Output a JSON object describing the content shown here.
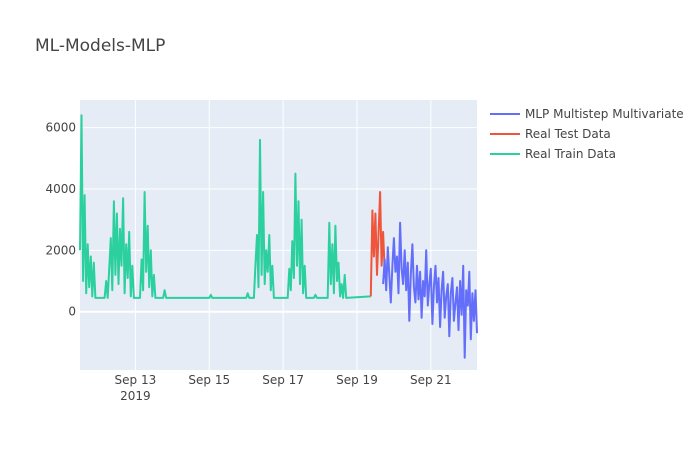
{
  "chart_data": {
    "type": "line",
    "title": "ML-Models-MLP",
    "xlabel": "",
    "ylabel": "",
    "x_range": [
      "2019-09-11 12:00",
      "2019-09-22 06:00"
    ],
    "ylim": [
      -1900,
      6900
    ],
    "x_ticks": [
      {
        "value": "2019-09-13",
        "label": "Sep 13",
        "sublabel": "2019"
      },
      {
        "value": "2019-09-15",
        "label": "Sep 15",
        "sublabel": ""
      },
      {
        "value": "2019-09-17",
        "label": "Sep 17",
        "sublabel": ""
      },
      {
        "value": "2019-09-19",
        "label": "Sep 19",
        "sublabel": ""
      },
      {
        "value": "2019-09-21",
        "label": "Sep 21",
        "sublabel": ""
      }
    ],
    "y_ticks": [
      0,
      2000,
      4000,
      6000
    ],
    "grid": true,
    "legend_position": "top-right",
    "series": [
      {
        "name": "MLP Multistep Multivariate",
        "color": "#636efa",
        "points": [
          [
            "2019-09-19 17:00",
            900
          ],
          [
            "2019-09-19 18:00",
            1700
          ],
          [
            "2019-09-19 19:00",
            700
          ],
          [
            "2019-09-19 20:00",
            2100
          ],
          [
            "2019-09-19 21:00",
            1200
          ],
          [
            "2019-09-19 22:00",
            300
          ],
          [
            "2019-09-19 23:00",
            1500
          ],
          [
            "2019-09-20 00:00",
            2400
          ],
          [
            "2019-09-20 01:00",
            1300
          ],
          [
            "2019-09-20 02:00",
            1800
          ],
          [
            "2019-09-20 03:00",
            600
          ],
          [
            "2019-09-20 04:00",
            2900
          ],
          [
            "2019-09-20 05:00",
            1400
          ],
          [
            "2019-09-20 06:00",
            900
          ],
          [
            "2019-09-20 07:00",
            2000
          ],
          [
            "2019-09-20 08:00",
            700
          ],
          [
            "2019-09-20 09:00",
            1600
          ],
          [
            "2019-09-20 10:00",
            -300
          ],
          [
            "2019-09-20 11:00",
            1200
          ],
          [
            "2019-09-20 12:00",
            2200
          ],
          [
            "2019-09-20 13:00",
            800
          ],
          [
            "2019-09-20 14:00",
            300
          ],
          [
            "2019-09-20 15:00",
            1500
          ],
          [
            "2019-09-20 16:00",
            400
          ],
          [
            "2019-09-20 17:00",
            1300
          ],
          [
            "2019-09-20 18:00",
            -200
          ],
          [
            "2019-09-20 19:00",
            1000
          ],
          [
            "2019-09-20 20:00",
            500
          ],
          [
            "2019-09-20 21:00",
            2000
          ],
          [
            "2019-09-20 22:00",
            200
          ],
          [
            "2019-09-20 23:00",
            900
          ],
          [
            "2019-09-21 00:00",
            1400
          ],
          [
            "2019-09-21 01:00",
            -400
          ],
          [
            "2019-09-21 02:00",
            800
          ],
          [
            "2019-09-21 03:00",
            1500
          ],
          [
            "2019-09-21 04:00",
            300
          ],
          [
            "2019-09-21 05:00",
            1100
          ],
          [
            "2019-09-21 06:00",
            -500
          ],
          [
            "2019-09-21 07:00",
            700
          ],
          [
            "2019-09-21 08:00",
            1300
          ],
          [
            "2019-09-21 09:00",
            -200
          ],
          [
            "2019-09-21 10:00",
            500
          ],
          [
            "2019-09-21 11:00",
            900
          ],
          [
            "2019-09-21 12:00",
            -800
          ],
          [
            "2019-09-21 13:00",
            600
          ],
          [
            "2019-09-21 14:00",
            1100
          ],
          [
            "2019-09-21 15:00",
            -300
          ],
          [
            "2019-09-21 16:00",
            300
          ],
          [
            "2019-09-21 17:00",
            800
          ],
          [
            "2019-09-21 18:00",
            -600
          ],
          [
            "2019-09-21 19:00",
            1000
          ],
          [
            "2019-09-21 20:00",
            -100
          ],
          [
            "2019-09-21 21:00",
            1500
          ],
          [
            "2019-09-21 22:00",
            -1500
          ],
          [
            "2019-09-21 23:00",
            700
          ],
          [
            "2019-09-22 00:00",
            200
          ],
          [
            "2019-09-22 01:00",
            1300
          ],
          [
            "2019-09-22 02:00",
            -900
          ],
          [
            "2019-09-22 03:00",
            600
          ],
          [
            "2019-09-22 04:00",
            -300
          ],
          [
            "2019-09-22 05:00",
            700
          ],
          [
            "2019-09-22 06:00",
            -700
          ]
        ]
      },
      {
        "name": "Real Test Data",
        "color": "#ef553b",
        "points": [
          [
            "2019-09-19 09:00",
            500
          ],
          [
            "2019-09-19 10:00",
            3300
          ],
          [
            "2019-09-19 11:00",
            1800
          ],
          [
            "2019-09-19 12:00",
            3200
          ],
          [
            "2019-09-19 13:00",
            1200
          ],
          [
            "2019-09-19 14:00",
            2500
          ],
          [
            "2019-09-19 15:00",
            3900
          ],
          [
            "2019-09-19 16:00",
            1500
          ],
          [
            "2019-09-19 17:00",
            2600
          ],
          [
            "2019-09-19 18:00",
            1300
          ]
        ]
      },
      {
        "name": "Real Train Data",
        "color": "#2ccf9e",
        "points": [
          [
            "2019-09-11 12:00",
            2000
          ],
          [
            "2019-09-11 13:00",
            6400
          ],
          [
            "2019-09-11 14:00",
            1000
          ],
          [
            "2019-09-11 15:00",
            3800
          ],
          [
            "2019-09-11 16:00",
            600
          ],
          [
            "2019-09-11 17:00",
            2200
          ],
          [
            "2019-09-11 18:00",
            800
          ],
          [
            "2019-09-11 19:00",
            1800
          ],
          [
            "2019-09-11 20:00",
            500
          ],
          [
            "2019-09-11 21:00",
            1600
          ],
          [
            "2019-09-11 22:00",
            450
          ],
          [
            "2019-09-12 04:00",
            450
          ],
          [
            "2019-09-12 05:00",
            1000
          ],
          [
            "2019-09-12 06:00",
            450
          ],
          [
            "2019-09-12 08:00",
            2400
          ],
          [
            "2019-09-12 09:00",
            700
          ],
          [
            "2019-09-12 10:00",
            3600
          ],
          [
            "2019-09-12 11:00",
            1200
          ],
          [
            "2019-09-12 12:00",
            3200
          ],
          [
            "2019-09-12 13:00",
            900
          ],
          [
            "2019-09-12 14:00",
            2700
          ],
          [
            "2019-09-12 15:00",
            1500
          ],
          [
            "2019-09-12 16:00",
            3700
          ],
          [
            "2019-09-12 17:00",
            600
          ],
          [
            "2019-09-12 18:00",
            2200
          ],
          [
            "2019-09-12 19:00",
            1100
          ],
          [
            "2019-09-12 20:00",
            2600
          ],
          [
            "2019-09-12 21:00",
            500
          ],
          [
            "2019-09-12 22:00",
            1500
          ],
          [
            "2019-09-12 23:00",
            450
          ],
          [
            "2019-09-13 03:00",
            450
          ],
          [
            "2019-09-13 04:00",
            1700
          ],
          [
            "2019-09-13 05:00",
            700
          ],
          [
            "2019-09-13 06:00",
            3900
          ],
          [
            "2019-09-13 07:00",
            1300
          ],
          [
            "2019-09-13 08:00",
            2800
          ],
          [
            "2019-09-13 09:00",
            800
          ],
          [
            "2019-09-13 10:00",
            2000
          ],
          [
            "2019-09-13 11:00",
            500
          ],
          [
            "2019-09-13 12:00",
            1200
          ],
          [
            "2019-09-13 13:00",
            450
          ],
          [
            "2019-09-13 18:00",
            450
          ],
          [
            "2019-09-13 19:00",
            700
          ],
          [
            "2019-09-13 20:00",
            450
          ],
          [
            "2019-09-15 00:00",
            450
          ],
          [
            "2019-09-15 01:00",
            550
          ],
          [
            "2019-09-15 02:00",
            450
          ],
          [
            "2019-09-16 00:00",
            450
          ],
          [
            "2019-09-16 01:00",
            600
          ],
          [
            "2019-09-16 02:00",
            450
          ],
          [
            "2019-09-16 05:00",
            450
          ],
          [
            "2019-09-16 06:00",
            1500
          ],
          [
            "2019-09-16 07:00",
            2500
          ],
          [
            "2019-09-16 08:00",
            800
          ],
          [
            "2019-09-16 09:00",
            5600
          ],
          [
            "2019-09-16 10:00",
            1200
          ],
          [
            "2019-09-16 11:00",
            3900
          ],
          [
            "2019-09-16 12:00",
            900
          ],
          [
            "2019-09-16 13:00",
            2000
          ],
          [
            "2019-09-16 14:00",
            1300
          ],
          [
            "2019-09-16 15:00",
            2500
          ],
          [
            "2019-09-16 16:00",
            700
          ],
          [
            "2019-09-16 17:00",
            1500
          ],
          [
            "2019-09-16 18:00",
            450
          ],
          [
            "2019-09-17 03:00",
            450
          ],
          [
            "2019-09-17 04:00",
            1400
          ],
          [
            "2019-09-17 05:00",
            700
          ],
          [
            "2019-09-17 06:00",
            2300
          ],
          [
            "2019-09-17 07:00",
            1100
          ],
          [
            "2019-09-17 08:00",
            4500
          ],
          [
            "2019-09-17 09:00",
            1500
          ],
          [
            "2019-09-17 10:00",
            3600
          ],
          [
            "2019-09-17 11:00",
            900
          ],
          [
            "2019-09-17 12:00",
            3000
          ],
          [
            "2019-09-17 13:00",
            600
          ],
          [
            "2019-09-17 14:00",
            1500
          ],
          [
            "2019-09-17 15:00",
            450
          ],
          [
            "2019-09-17 20:00",
            450
          ],
          [
            "2019-09-17 21:00",
            550
          ],
          [
            "2019-09-17 22:00",
            450
          ],
          [
            "2019-09-18 05:00",
            450
          ],
          [
            "2019-09-18 06:00",
            2900
          ],
          [
            "2019-09-18 07:00",
            900
          ],
          [
            "2019-09-18 08:00",
            2200
          ],
          [
            "2019-09-18 09:00",
            600
          ],
          [
            "2019-09-18 10:00",
            2800
          ],
          [
            "2019-09-18 11:00",
            1000
          ],
          [
            "2019-09-18 12:00",
            1600
          ],
          [
            "2019-09-18 13:00",
            500
          ],
          [
            "2019-09-18 14:00",
            900
          ],
          [
            "2019-09-18 15:00",
            450
          ],
          [
            "2019-09-18 16:00",
            1200
          ],
          [
            "2019-09-18 17:00",
            450
          ],
          [
            "2019-09-19 09:00",
            500
          ]
        ]
      }
    ]
  }
}
